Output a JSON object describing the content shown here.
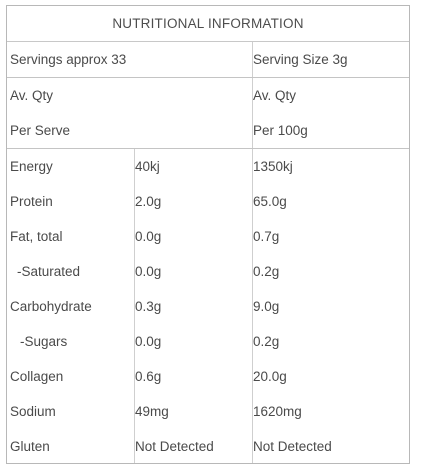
{
  "title": "NUTRITIONAL INFORMATION",
  "header": {
    "servings_label": "Servings approx 33",
    "serving_size_label": "Serving Size 3g",
    "avqty_left": "Av. Qty",
    "avqty_right": "Av. Qty",
    "per_serve": "Per Serve",
    "per_100g": "Per 100g"
  },
  "rows": [
    {
      "name": "Energy",
      "per_serve": "40kj",
      "per_100g": "1350kj"
    },
    {
      "name": "Protein",
      "per_serve": "2.0g",
      "per_100g": "65.0g"
    },
    {
      "name": "Fat, total",
      "per_serve": "0.0g",
      "per_100g": "0.7g"
    },
    {
      "name": "-Saturated",
      "per_serve": "0.0g",
      "per_100g": "0.2g"
    },
    {
      "name": "Carbohydrate",
      "per_serve": "0.3g",
      "per_100g": "9.0g"
    },
    {
      "name": "-Sugars",
      "per_serve": "0.0g",
      "per_100g": "0.2g"
    },
    {
      "name": "Collagen",
      "per_serve": "0.6g",
      "per_100g": "20.0g"
    },
    {
      "name": "Sodium",
      "per_serve": "49mg",
      "per_100g": "1620mg"
    },
    {
      "name": "Gluten",
      "per_serve": "Not Detected",
      "per_100g": "Not Detected"
    }
  ]
}
